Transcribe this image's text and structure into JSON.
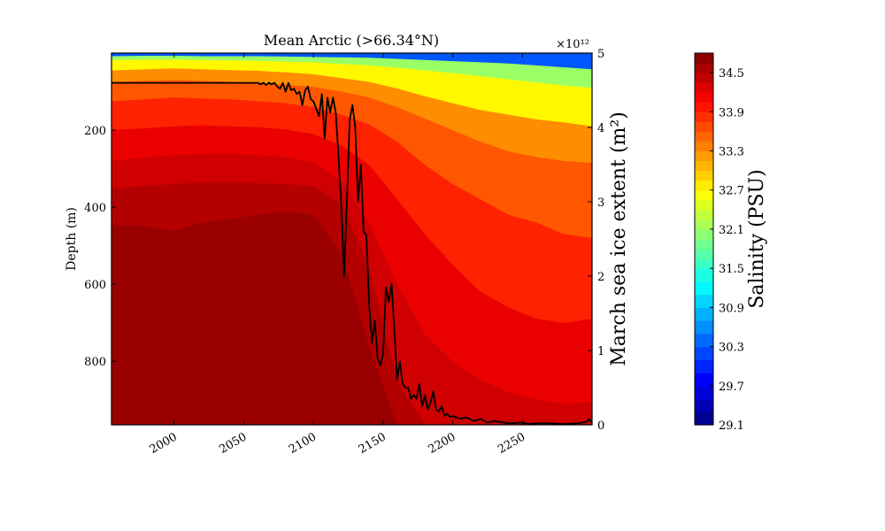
{
  "chart_data": {
    "type": "contourf+line",
    "title": "Mean Arctic (>66.34°N)",
    "x_range": [
      1955,
      2300
    ],
    "x_ticks": [
      2000,
      2050,
      2100,
      2150,
      2200,
      2250
    ],
    "depth_range": [
      965,
      0
    ],
    "depth_ticks": [
      200,
      400,
      600,
      800
    ],
    "ylabel_left": "Depth (m)",
    "ylabel_right": "March sea ice extent (m²)",
    "right_range": [
      0,
      5
    ],
    "right_ticks": [
      0,
      1,
      2,
      3,
      4,
      5
    ],
    "right_multiplier": "×10¹²",
    "colorbar": {
      "label": "Salinity (PSU)",
      "min": 29.1,
      "max": 34.8,
      "tick_values": [
        29.1,
        29.7,
        30.3,
        30.9,
        31.5,
        32.1,
        32.7,
        33.3,
        33.9,
        34.5
      ],
      "tick_labels": [
        "29.1",
        "29.7",
        "30.3",
        "30.9",
        "31.5",
        "32.1",
        "32.7",
        "33.3",
        "33.9",
        "34.5"
      ],
      "levels": [
        29.1,
        29.3,
        29.5,
        29.7,
        29.9,
        30.1,
        30.3,
        30.5,
        30.7,
        30.9,
        31.1,
        31.3,
        31.5,
        31.65,
        31.8,
        31.95,
        32.1,
        32.25,
        32.4,
        32.55,
        32.7,
        32.85,
        33.0,
        33.15,
        33.3,
        33.45,
        33.6,
        33.75,
        33.9,
        34.05,
        34.2,
        34.35,
        34.5,
        34.65,
        34.8
      ]
    },
    "contour_levels_depth": {
      "x": [
        1955,
        1980,
        2000,
        2020,
        2040,
        2060,
        2080,
        2100,
        2120,
        2140,
        2160,
        2180,
        2200,
        2220,
        2240,
        2260,
        2280,
        2300
      ],
      "bands": [
        {
          "value": 32.1,
          "depth": [
            8,
            7,
            7,
            8,
            8,
            8,
            9,
            10,
            11,
            12,
            15,
            18,
            21,
            24,
            27,
            32,
            37,
            42
          ]
        },
        {
          "value": 32.7,
          "depth": [
            18,
            17,
            17,
            18,
            19,
            20,
            22,
            24,
            28,
            32,
            38,
            45,
            52,
            60,
            68,
            76,
            84,
            90
          ]
        },
        {
          "value": 33.3,
          "depth": [
            45,
            42,
            40,
            42,
            44,
            46,
            50,
            55,
            65,
            75,
            92,
            112,
            130,
            148,
            160,
            172,
            180,
            190
          ]
        },
        {
          "value": 33.6,
          "depth": [
            75,
            72,
            70,
            72,
            75,
            78,
            82,
            88,
            100,
            115,
            140,
            170,
            200,
            230,
            255,
            270,
            280,
            285
          ]
        },
        {
          "value": 33.9,
          "depth": [
            125,
            120,
            115,
            118,
            120,
            125,
            130,
            140,
            160,
            185,
            230,
            290,
            340,
            380,
            420,
            440,
            470,
            480
          ]
        },
        {
          "value": 34.2,
          "depth": [
            200,
            195,
            190,
            188,
            190,
            192,
            198,
            210,
            240,
            290,
            380,
            470,
            550,
            620,
            660,
            690,
            700,
            690
          ]
        },
        {
          "value": 34.35,
          "depth": [
            280,
            270,
            265,
            262,
            262,
            265,
            270,
            285,
            330,
            440,
            600,
            730,
            800,
            850,
            880,
            900,
            910,
            905
          ]
        },
        {
          "value": 34.5,
          "depth": [
            350,
            345,
            340,
            335,
            335,
            338,
            340,
            345,
            390,
            560,
            850,
            965,
            965,
            965,
            965,
            965,
            965,
            965
          ]
        },
        {
          "value": 34.65,
          "depth": [
            445,
            450,
            460,
            440,
            430,
            420,
            410,
            420,
            520,
            760,
            965,
            965,
            965,
            965,
            965,
            965,
            965,
            965
          ]
        }
      ]
    },
    "sea_ice_extent": {
      "x": [
        1955,
        2060,
        2062,
        2064,
        2066,
        2068,
        2070,
        2072,
        2074,
        2076,
        2078,
        2080,
        2082,
        2084,
        2086,
        2088,
        2090,
        2092,
        2094,
        2096,
        2098,
        2100,
        2102,
        2104,
        2106,
        2108,
        2110,
        2112,
        2114,
        2116,
        2118,
        2120,
        2122,
        2124,
        2126,
        2128,
        2130,
        2132,
        2134,
        2136,
        2138,
        2140,
        2142,
        2144,
        2146,
        2148,
        2150,
        2152,
        2154,
        2156,
        2158,
        2160,
        2162,
        2164,
        2166,
        2168,
        2170,
        2172,
        2174,
        2176,
        2178,
        2180,
        2182,
        2184,
        2186,
        2188,
        2190,
        2192,
        2194,
        2196,
        2198,
        2200,
        2205,
        2210,
        2215,
        2220,
        2225,
        2230,
        2240,
        2250,
        2255,
        2260,
        2270,
        2280,
        2290,
        2296,
        2298,
        2300
      ],
      "values": [
        4.6,
        4.6,
        4.58,
        4.6,
        4.57,
        4.6,
        4.58,
        4.6,
        4.55,
        4.52,
        4.6,
        4.48,
        4.6,
        4.5,
        4.52,
        4.45,
        4.48,
        4.3,
        4.5,
        4.55,
        4.38,
        4.35,
        4.25,
        4.15,
        4.45,
        3.85,
        4.4,
        4.2,
        4.4,
        4.2,
        3.6,
        2.95,
        2.0,
        3.0,
        4.1,
        4.3,
        4.0,
        3.0,
        3.5,
        2.6,
        2.55,
        1.6,
        1.1,
        1.4,
        0.9,
        0.8,
        0.95,
        1.85,
        1.65,
        1.9,
        1.3,
        0.6,
        0.85,
        0.55,
        0.5,
        0.5,
        0.35,
        0.4,
        0.35,
        0.55,
        0.25,
        0.4,
        0.2,
        0.3,
        0.45,
        0.2,
        0.18,
        0.25,
        0.12,
        0.15,
        0.1,
        0.12,
        0.08,
        0.1,
        0.05,
        0.08,
        0.03,
        0.05,
        0.02,
        0.03,
        0.01,
        0.02,
        0.02,
        0.01,
        0.02,
        0.04,
        0.08,
        0.02
      ]
    }
  }
}
